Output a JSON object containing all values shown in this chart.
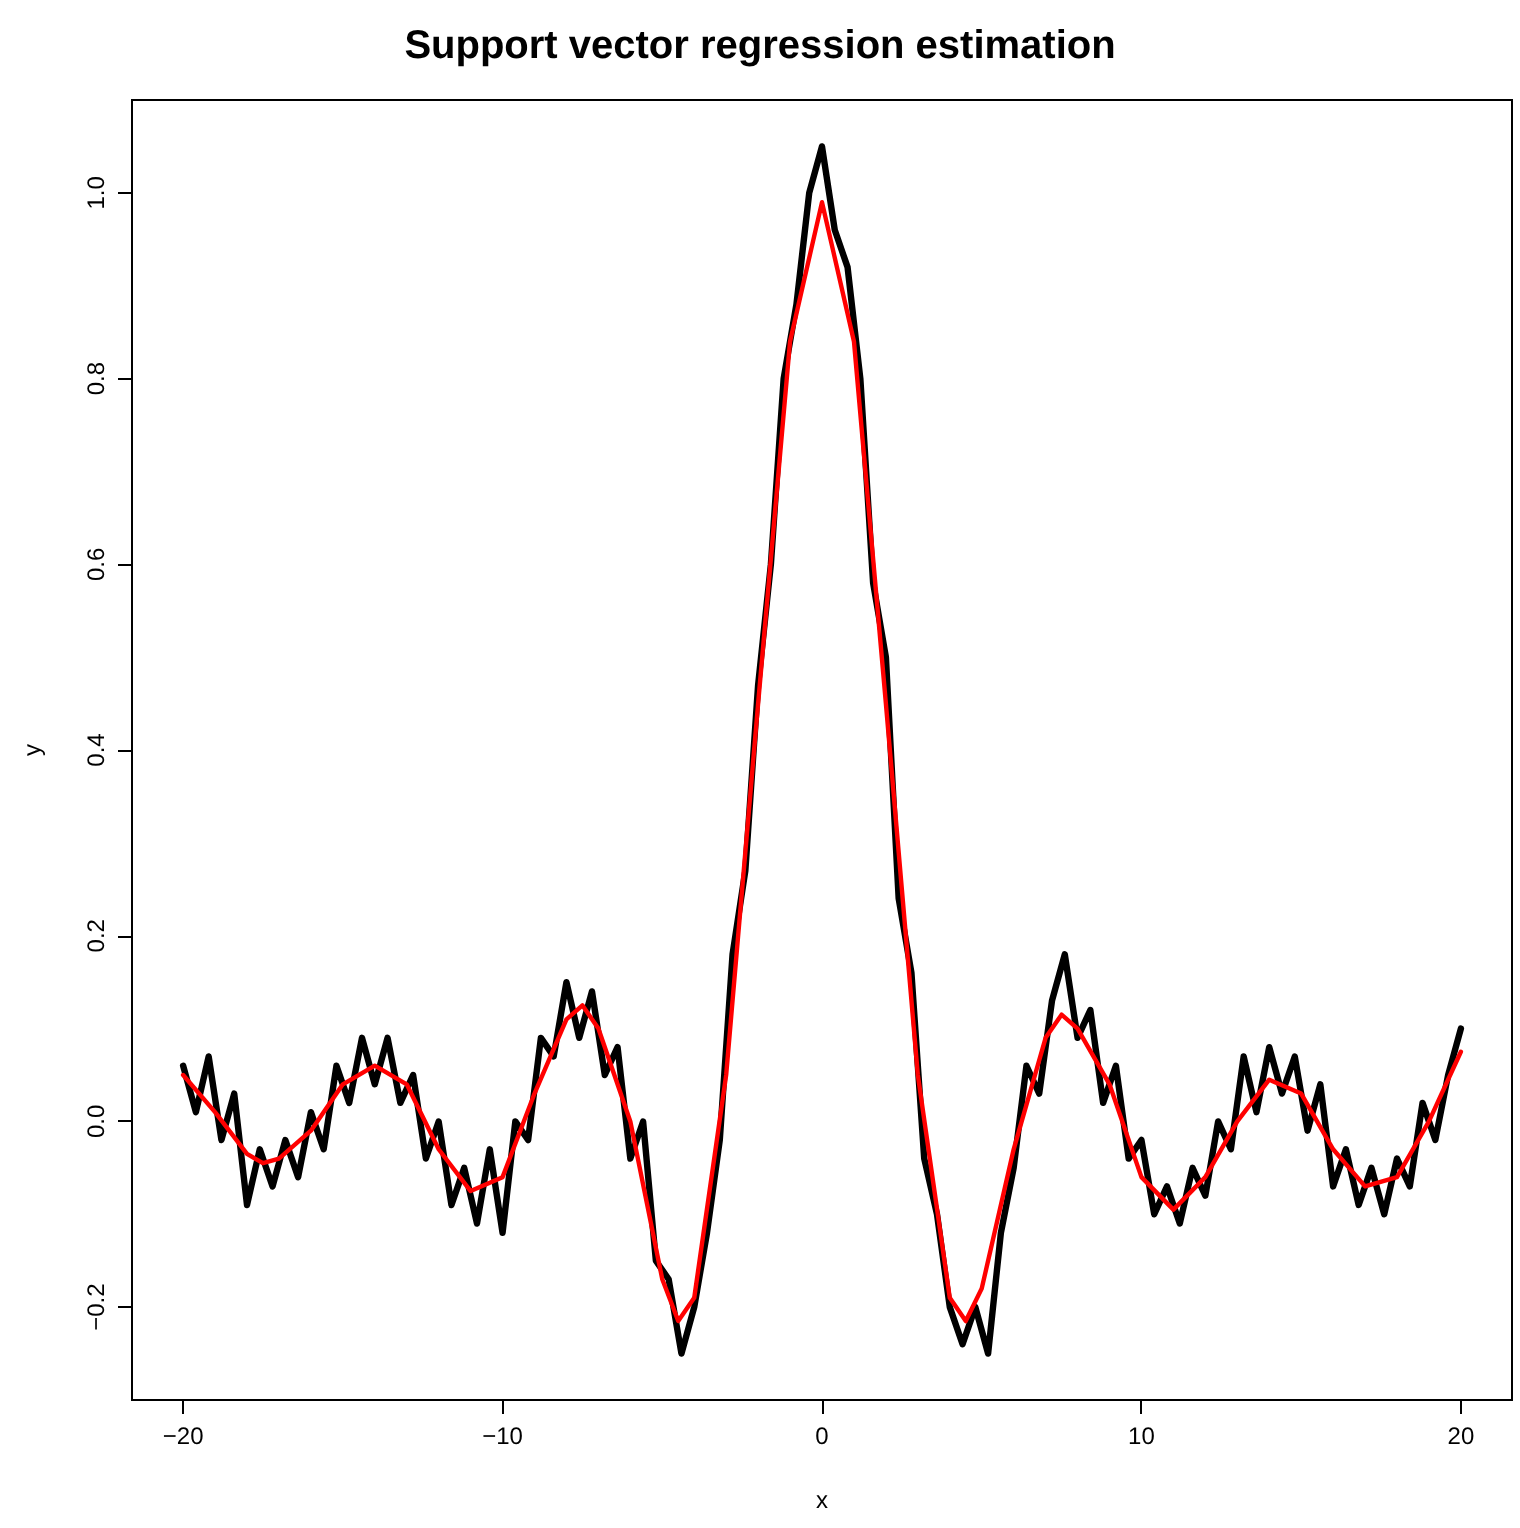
{
  "chart_data": {
    "type": "line",
    "title": "Support vector regression estimation",
    "xlabel": "x",
    "ylabel": "y",
    "xlim": [
      -21.6,
      21.6
    ],
    "ylim": [
      -0.3,
      1.1
    ],
    "xticks": [
      {
        "value": -20,
        "label": "−20"
      },
      {
        "value": -10,
        "label": "−10"
      },
      0,
      10,
      20
    ],
    "yticks": [
      {
        "value": -0.2,
        "label": "−0.2"
      },
      {
        "value": 0,
        "label": "0.0"
      },
      0.2,
      0.4,
      0.6,
      0.8,
      {
        "value": 1,
        "label": "1.0"
      }
    ],
    "grid": false,
    "marker": "none",
    "line_style": "solid",
    "series": [
      {
        "color": "#000000",
        "x": [
          -20,
          -19.6,
          -19.2,
          -18.8,
          -18.4,
          -18,
          -17.6,
          -17.2,
          -16.8,
          -16.4,
          -16,
          -15.6,
          -15.2,
          -14.8,
          -14.4,
          -14,
          -13.6,
          -13.2,
          -12.8,
          -12.4,
          -12,
          -11.6,
          -11.2,
          -10.8,
          -10.4,
          -10,
          -9.6,
          -9.2,
          -8.8,
          -8.4,
          -8,
          -7.6,
          -7.2,
          -6.8,
          -6.4,
          -6,
          -5.6,
          -5.2,
          -4.8,
          -4.4,
          -4,
          -3.6,
          -3.2,
          -2.8,
          -2.4,
          -2,
          -1.6,
          -1.2,
          -0.8,
          -0.4,
          0,
          0.4,
          0.8,
          1.2,
          1.6,
          2,
          2.4,
          2.8,
          3.2,
          3.6,
          4,
          4.4,
          4.8,
          5.2,
          5.6,
          6,
          6.4,
          6.8,
          7.2,
          7.6,
          8,
          8.4,
          8.8,
          9.2,
          9.6,
          10,
          10.4,
          10.8,
          11.2,
          11.6,
          12,
          12.4,
          12.8,
          13.2,
          13.6,
          14,
          14.4,
          14.8,
          15.2,
          15.6,
          16,
          16.4,
          16.8,
          17.2,
          17.6,
          18,
          18.4,
          18.8,
          19.2,
          19.6,
          20
        ],
        "values": [
          0.06,
          0.01,
          0.07,
          -0.02,
          0.03,
          -0.09,
          -0.03,
          -0.07,
          -0.02,
          -0.06,
          0.01,
          -0.03,
          0.06,
          0.02,
          0.09,
          0.04,
          0.09,
          0.02,
          0.05,
          -0.04,
          0,
          -0.09,
          -0.05,
          -0.11,
          -0.03,
          -0.12,
          0,
          -0.02,
          0.09,
          0.07,
          0.15,
          0.09,
          0.14,
          0.05,
          0.08,
          -0.04,
          0,
          -0.15,
          -0.17,
          -0.25,
          -0.2,
          -0.12,
          -0.02,
          0.18,
          0.27,
          0.47,
          0.6,
          0.8,
          0.88,
          1,
          1.05,
          0.96,
          0.92,
          0.8,
          0.58,
          0.5,
          0.24,
          0.16,
          -0.04,
          -0.1,
          -0.2,
          -0.24,
          -0.2,
          -0.25,
          -0.12,
          -0.05,
          0.06,
          0.03,
          0.13,
          0.18,
          0.09,
          0.12,
          0.02,
          0.06,
          -0.04,
          -0.02,
          -0.1,
          -0.07,
          -0.11,
          -0.05,
          -0.08,
          0,
          -0.03,
          0.07,
          0.01,
          0.08,
          0.03,
          0.07,
          -0.01,
          0.04,
          -0.07,
          -0.03,
          -0.09,
          -0.05,
          -0.1,
          -0.04,
          -0.07,
          0.02,
          -0.02,
          0.05,
          0.1
        ]
      },
      {
        "color": "#ff0000",
        "x": [
          -20,
          -19,
          -18,
          -17.5,
          -17,
          -16,
          -15,
          -14,
          -13,
          -12,
          -11,
          -10,
          -9,
          -8,
          -7.5,
          -7,
          -6,
          -5,
          -4.5,
          -4,
          -3,
          -2,
          -1,
          0,
          1,
          2,
          3,
          4,
          4.5,
          5,
          6,
          7,
          7.5,
          8,
          9,
          10,
          11,
          12,
          13,
          14,
          15,
          16,
          17,
          18,
          19,
          20
        ],
        "values": [
          0.05,
          0.01,
          -0.035,
          -0.045,
          -0.04,
          -0.01,
          0.04,
          0.06,
          0.04,
          -0.03,
          -0.075,
          -0.06,
          0.03,
          0.11,
          0.125,
          0.1,
          0,
          -0.17,
          -0.215,
          -0.19,
          0.05,
          0.45,
          0.84,
          0.99,
          0.84,
          0.45,
          0.05,
          -0.19,
          -0.215,
          -0.18,
          -0.03,
          0.09,
          0.115,
          0.1,
          0.04,
          -0.06,
          -0.095,
          -0.06,
          0,
          0.045,
          0.03,
          -0.03,
          -0.07,
          -0.06,
          0,
          0.075
        ]
      }
    ]
  }
}
